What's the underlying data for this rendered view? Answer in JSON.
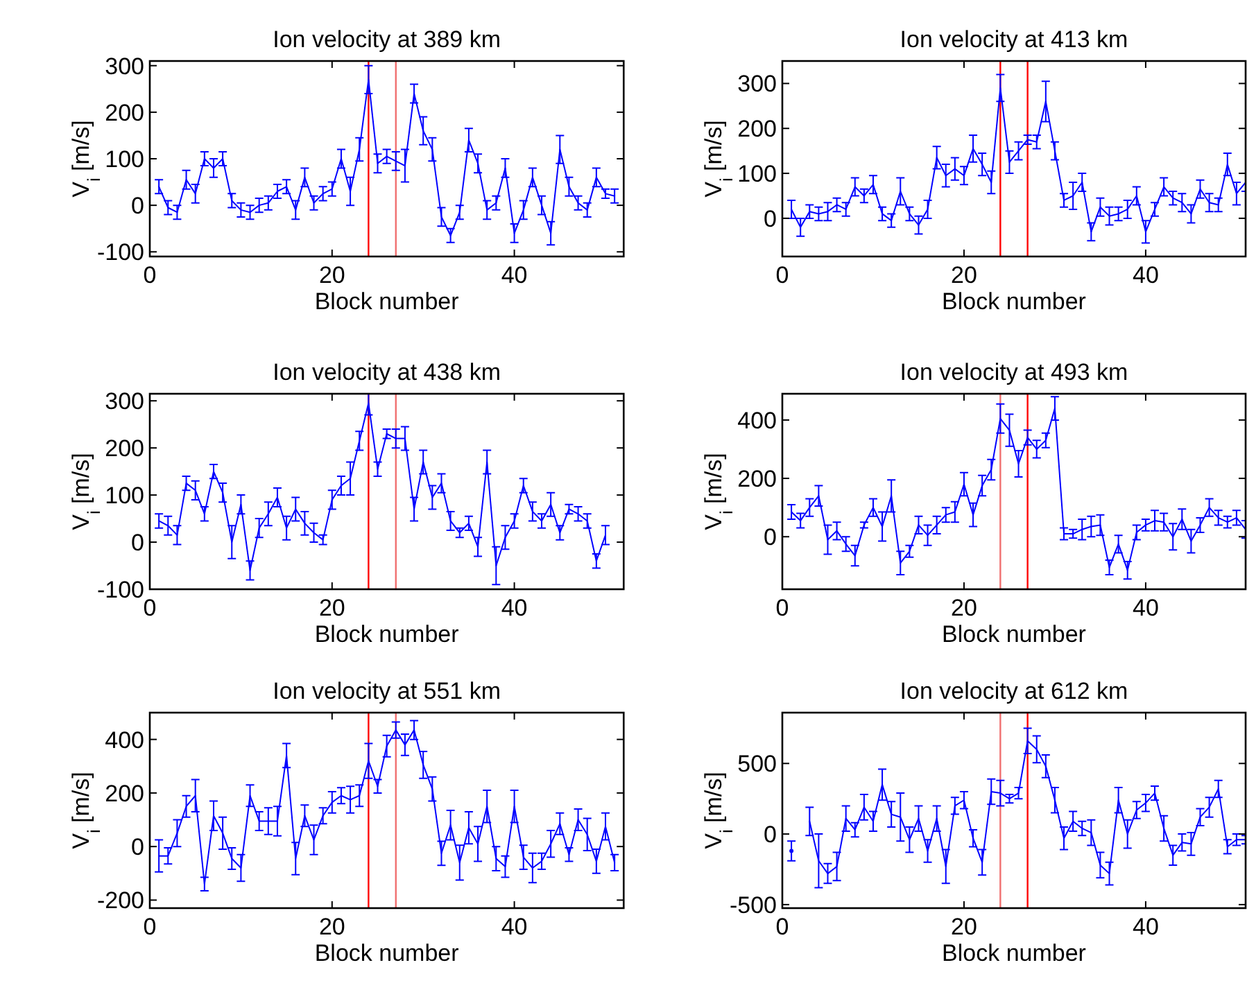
{
  "chart_data": [
    {
      "type": "line",
      "title": "Ion velocity at 389 km",
      "xlabel": "Block number",
      "ylabel": "V$_{i}$ [m/s]",
      "x": [
        1,
        2,
        3,
        4,
        5,
        6,
        7,
        8,
        9,
        10,
        11,
        12,
        13,
        14,
        15,
        16,
        17,
        18,
        19,
        20,
        21,
        22,
        23,
        24,
        25,
        26,
        27,
        28,
        29,
        30,
        31,
        32,
        33,
        34,
        35,
        36,
        37,
        38,
        39,
        40,
        41,
        42,
        43,
        44,
        45,
        46,
        47,
        48,
        49,
        50,
        51
      ],
      "xlim": [
        0,
        52
      ],
      "xticks": [
        0,
        20,
        40
      ],
      "ylim": [
        -110,
        310
      ],
      "yticks": [
        -100,
        0,
        100,
        200,
        300
      ],
      "series": [
        {
          "color": "#0000ff",
          "values": [
            40,
            -5,
            -15,
            55,
            25,
            100,
            80,
            100,
            10,
            -10,
            -15,
            0,
            5,
            30,
            40,
            -10,
            60,
            5,
            25,
            35,
            100,
            30,
            120,
            270,
            90,
            105,
            95,
            85,
            240,
            160,
            120,
            -25,
            -65,
            -15,
            140,
            90,
            -10,
            5,
            80,
            -60,
            -10,
            60,
            0,
            -60,
            120,
            40,
            5,
            -10,
            60,
            25,
            20
          ],
          "errors": [
            15,
            15,
            15,
            20,
            20,
            15,
            20,
            15,
            15,
            15,
            15,
            15,
            15,
            15,
            15,
            20,
            20,
            15,
            15,
            15,
            20,
            30,
            25,
            30,
            20,
            15,
            20,
            35,
            20,
            30,
            25,
            20,
            15,
            15,
            25,
            20,
            20,
            15,
            20,
            20,
            20,
            20,
            20,
            25,
            30,
            20,
            15,
            15,
            20,
            10,
            15
          ]
        }
      ],
      "ref_lines": [
        {
          "axis": "x",
          "value": 24,
          "color": "#ff0000"
        },
        {
          "axis": "x",
          "value": 27,
          "color": "#f07070"
        }
      ]
    },
    {
      "type": "line",
      "title": "Ion velocity at 413 km",
      "xlabel": "Block number",
      "ylabel": "V$_{i}$ [m/s]",
      "x": [
        1,
        2,
        3,
        4,
        5,
        6,
        7,
        8,
        9,
        10,
        11,
        12,
        13,
        14,
        15,
        16,
        17,
        18,
        19,
        20,
        21,
        22,
        23,
        24,
        25,
        26,
        27,
        28,
        29,
        30,
        31,
        32,
        33,
        34,
        35,
        36,
        37,
        38,
        39,
        40,
        41,
        42,
        43,
        44,
        45,
        46,
        47,
        48,
        49,
        50,
        51
      ],
      "xlim": [
        0,
        51
      ],
      "xticks": [
        0,
        20,
        40
      ],
      "ylim": [
        -85,
        350
      ],
      "yticks": [
        0,
        100,
        200,
        300
      ],
      "series": [
        {
          "color": "#0000ff",
          "values": [
            20,
            -20,
            15,
            10,
            15,
            30,
            20,
            70,
            50,
            75,
            10,
            -5,
            60,
            10,
            -15,
            20,
            135,
            95,
            110,
            95,
            155,
            120,
            80,
            290,
            125,
            150,
            175,
            170,
            260,
            150,
            40,
            50,
            80,
            -30,
            25,
            5,
            10,
            20,
            50,
            -30,
            20,
            70,
            45,
            35,
            10,
            65,
            35,
            30,
            120,
            55,
            80
          ],
          "errors": [
            20,
            20,
            15,
            15,
            20,
            15,
            15,
            20,
            15,
            20,
            15,
            15,
            30,
            15,
            20,
            20,
            25,
            25,
            25,
            20,
            30,
            25,
            25,
            30,
            25,
            20,
            10,
            15,
            45,
            20,
            15,
            30,
            20,
            20,
            20,
            20,
            15,
            20,
            20,
            25,
            15,
            20,
            15,
            20,
            20,
            20,
            20,
            15,
            25,
            25,
            20
          ]
        }
      ],
      "ref_lines": [
        {
          "axis": "x",
          "value": 24,
          "color": "#ff0000"
        },
        {
          "axis": "x",
          "value": 27,
          "color": "#ff0000"
        }
      ]
    },
    {
      "type": "line",
      "title": "Ion velocity at 438 km",
      "xlabel": "Block number",
      "ylabel": "V$_{i}$ [m/s]",
      "x": [
        1,
        2,
        3,
        4,
        5,
        6,
        7,
        8,
        9,
        10,
        11,
        12,
        13,
        14,
        15,
        16,
        17,
        18,
        19,
        20,
        21,
        22,
        23,
        24,
        25,
        26,
        27,
        28,
        29,
        30,
        31,
        32,
        33,
        34,
        35,
        36,
        37,
        38,
        39,
        40,
        41,
        42,
        43,
        44,
        45,
        46,
        47,
        48,
        49,
        50
      ],
      "xlim": [
        0,
        52
      ],
      "xticks": [
        0,
        20,
        40
      ],
      "ylim": [
        -100,
        315
      ],
      "yticks": [
        -100,
        0,
        100,
        200,
        300
      ],
      "series": [
        {
          "color": "#0000ff",
          "values": [
            45,
            35,
            15,
            125,
            110,
            60,
            150,
            105,
            0,
            80,
            -60,
            30,
            60,
            95,
            30,
            70,
            40,
            20,
            5,
            90,
            120,
            135,
            215,
            295,
            155,
            230,
            220,
            220,
            70,
            170,
            95,
            125,
            45,
            20,
            40,
            -10,
            170,
            -50,
            10,
            45,
            120,
            65,
            45,
            80,
            20,
            70,
            60,
            45,
            -40,
            15
          ],
          "errors": [
            15,
            20,
            20,
            15,
            20,
            15,
            15,
            20,
            35,
            20,
            20,
            20,
            25,
            20,
            25,
            25,
            25,
            20,
            10,
            20,
            20,
            35,
            20,
            25,
            15,
            10,
            20,
            25,
            25,
            25,
            25,
            20,
            20,
            10,
            15,
            20,
            25,
            40,
            25,
            15,
            15,
            20,
            15,
            25,
            15,
            10,
            15,
            15,
            15,
            20
          ]
        }
      ],
      "ref_lines": [
        {
          "axis": "x",
          "value": 24,
          "color": "#ff0000"
        },
        {
          "axis": "x",
          "value": 27,
          "color": "#f07070"
        }
      ]
    },
    {
      "type": "line",
      "title": "Ion velocity at 493 km",
      "xlabel": "Block number",
      "ylabel": "V$_{i}$ [m/s]",
      "x": [
        1,
        2,
        3,
        4,
        5,
        6,
        7,
        8,
        9,
        10,
        11,
        12,
        13,
        14,
        15,
        16,
        17,
        18,
        19,
        20,
        21,
        22,
        23,
        24,
        25,
        26,
        27,
        28,
        29,
        30,
        31,
        32,
        33,
        34,
        35,
        36,
        37,
        38,
        39,
        40,
        41,
        42,
        43,
        44,
        45,
        46,
        47,
        48,
        49,
        50,
        51
      ],
      "xlim": [
        0,
        51
      ],
      "xticks": [
        0,
        20,
        40
      ],
      "ylim": [
        -180,
        490
      ],
      "yticks": [
        0,
        200,
        400
      ],
      "series": [
        {
          "color": "#0000ff",
          "values": [
            85,
            55,
            100,
            140,
            -10,
            20,
            -25,
            -65,
            40,
            100,
            35,
            140,
            -90,
            -50,
            40,
            5,
            40,
            75,
            85,
            180,
            75,
            175,
            230,
            405,
            365,
            250,
            340,
            300,
            330,
            440,
            10,
            10,
            25,
            35,
            40,
            -105,
            -25,
            -115,
            15,
            40,
            55,
            50,
            0,
            60,
            -15,
            40,
            100,
            65,
            50,
            65,
            25
          ],
          "errors": [
            25,
            25,
            30,
            35,
            50,
            30,
            25,
            35,
            10,
            30,
            50,
            55,
            40,
            20,
            30,
            35,
            30,
            25,
            35,
            40,
            40,
            35,
            35,
            50,
            55,
            45,
            25,
            30,
            25,
            40,
            20,
            15,
            35,
            35,
            35,
            25,
            30,
            30,
            25,
            20,
            35,
            30,
            45,
            35,
            40,
            25,
            30,
            25,
            20,
            25,
            30
          ]
        }
      ],
      "ref_lines": [
        {
          "axis": "x",
          "value": 24,
          "color": "#f07070"
        },
        {
          "axis": "x",
          "value": 27,
          "color": "#ff0000"
        }
      ]
    },
    {
      "type": "line",
      "title": "Ion velocity at 551 km",
      "xlabel": "Block number",
      "ylabel": "V$_{i}$ [m/s]",
      "x": [
        1,
        2,
        3,
        4,
        5,
        6,
        7,
        8,
        9,
        10,
        11,
        12,
        13,
        14,
        15,
        16,
        17,
        18,
        19,
        20,
        21,
        22,
        23,
        24,
        25,
        26,
        27,
        28,
        29,
        30,
        31,
        32,
        33,
        34,
        35,
        36,
        37,
        38,
        39,
        40,
        41,
        42,
        43,
        44,
        45,
        46,
        47,
        48,
        49,
        50,
        51
      ],
      "xlim": [
        0,
        52
      ],
      "xticks": [
        0,
        20,
        40
      ],
      "ylim": [
        -230,
        500
      ],
      "yticks": [
        -200,
        0,
        200,
        400
      ],
      "series": [
        {
          "color": "#0000ff",
          "values": [
            -35,
            -35,
            50,
            150,
            190,
            -140,
            115,
            50,
            -45,
            -80,
            190,
            95,
            95,
            95,
            340,
            -45,
            115,
            25,
            115,
            165,
            190,
            175,
            190,
            320,
            225,
            375,
            435,
            380,
            435,
            305,
            215,
            -25,
            80,
            -60,
            70,
            10,
            150,
            -45,
            -75,
            150,
            -40,
            -80,
            -55,
            10,
            85,
            -30,
            100,
            45,
            -55,
            75,
            -60
          ],
          "errors": [
            60,
            30,
            50,
            40,
            60,
            25,
            55,
            60,
            40,
            50,
            40,
            35,
            50,
            55,
            45,
            60,
            40,
            55,
            30,
            40,
            30,
            50,
            40,
            65,
            25,
            40,
            30,
            40,
            35,
            50,
            45,
            45,
            55,
            65,
            60,
            65,
            60,
            45,
            40,
            60,
            45,
            55,
            30,
            50,
            40,
            25,
            40,
            60,
            45,
            50,
            30
          ]
        }
      ],
      "ref_lines": [
        {
          "axis": "x",
          "value": 24,
          "color": "#ff0000"
        },
        {
          "axis": "x",
          "value": 27,
          "color": "#f07070"
        }
      ]
    },
    {
      "type": "line",
      "title": "Ion velocity at 612 km",
      "xlabel": "Block number",
      "ylabel": "V$_{i}$ [m/s]",
      "x": [
        1,
        2,
        3,
        4,
        5,
        6,
        7,
        8,
        9,
        10,
        11,
        12,
        13,
        14,
        15,
        16,
        17,
        18,
        19,
        20,
        21,
        22,
        23,
        24,
        25,
        26,
        27,
        28,
        29,
        30,
        31,
        32,
        33,
        34,
        35,
        36,
        37,
        38,
        39,
        40,
        41,
        42,
        43,
        44,
        45,
        46,
        47,
        48,
        49,
        50,
        51
      ],
      "xlim": [
        0,
        51
      ],
      "xticks": [
        0,
        20,
        40
      ],
      "ylim": [
        -525,
        860
      ],
      "yticks": [
        -500,
        0,
        500
      ],
      "series": [
        {
          "color": "#0000ff",
          "values": [
            -120,
            null,
            90,
            -190,
            -280,
            -230,
            110,
            30,
            190,
            90,
            350,
            140,
            120,
            -40,
            110,
            -120,
            110,
            -230,
            200,
            240,
            -30,
            -200,
            300,
            290,
            250,
            290,
            660,
            600,
            480,
            240,
            -30,
            90,
            40,
            10,
            -220,
            -280,
            240,
            0,
            170,
            220,
            290,
            40,
            -150,
            -60,
            -70,
            120,
            190,
            320,
            -90,
            -40,
            -40
          ],
          "errors": [
            70,
            null,
            100,
            190,
            70,
            100,
            90,
            50,
            90,
            70,
            110,
            90,
            170,
            90,
            90,
            80,
            90,
            120,
            60,
            60,
            60,
            90,
            90,
            90,
            30,
            40,
            90,
            95,
            80,
            90,
            80,
            70,
            50,
            90,
            90,
            80,
            90,
            100,
            60,
            60,
            50,
            90,
            70,
            60,
            80,
            60,
            70,
            60,
            50,
            40,
            30
          ]
        }
      ],
      "ref_lines": [
        {
          "axis": "x",
          "value": 24,
          "color": "#f07070"
        },
        {
          "axis": "x",
          "value": 27,
          "color": "#ff0000"
        }
      ]
    }
  ]
}
